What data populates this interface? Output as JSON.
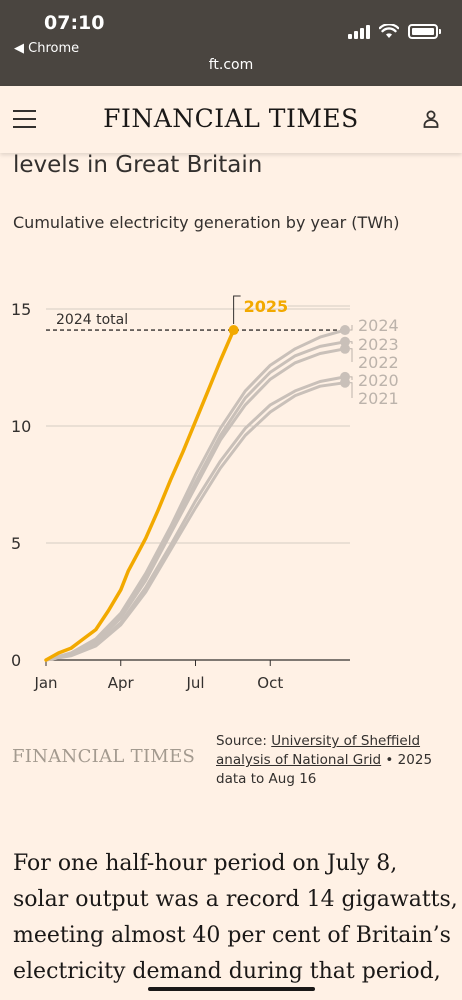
{
  "status_bar": {
    "time": "07:10",
    "back_label": "◀ Chrome",
    "url": "ft.com"
  },
  "header": {
    "masthead": "FINANCIAL TIMES"
  },
  "article": {
    "headline_tail": "levels in Great Britain",
    "chart_subtitle": "Cumulative electricity generation by year (TWh)",
    "paragraph": "For one half-hour period on July 8, solar output was a record 14 gigawatts, meeting almost 40 per cent of Britain’s electricity demand during that period,"
  },
  "chart_footer": {
    "logo": "FINANCIAL TIMES",
    "source_prefix": "Source: ",
    "source_link": "University of Sheffield analysis of National Grid",
    "source_suffix": " • 2025 data to Aug 16"
  },
  "colors": {
    "highlight": "#f2a900",
    "history": "#c9c0b9",
    "axis": "#33302e",
    "background": "#fff1e5"
  },
  "chart_data": {
    "type": "line",
    "ylim": [
      0,
      15
    ],
    "yticks": [
      0,
      5,
      10,
      15
    ],
    "xticks": [
      "Jan",
      "Apr",
      "Jul",
      "Oct"
    ],
    "annotation": "2024 total",
    "annotation_value": 14.1,
    "series": [
      {
        "name": "2025",
        "color": "#f2a900",
        "points": [
          [
            0,
            0
          ],
          [
            0.5,
            0.3
          ],
          [
            1,
            0.5
          ],
          [
            1.5,
            0.9
          ],
          [
            2,
            1.3
          ],
          [
            2.5,
            2.1
          ],
          [
            3,
            3.0
          ],
          [
            3.3,
            3.8
          ],
          [
            3.7,
            4.6
          ],
          [
            4,
            5.2
          ],
          [
            4.5,
            6.4
          ],
          [
            5,
            7.7
          ],
          [
            5.5,
            8.9
          ],
          [
            6,
            10.2
          ],
          [
            6.5,
            11.5
          ],
          [
            7,
            12.8
          ],
          [
            7.53,
            14.1
          ]
        ]
      },
      {
        "name": "2024",
        "color": "#c9c0b9",
        "points": [
          [
            0,
            0
          ],
          [
            1,
            0.3
          ],
          [
            2,
            0.9
          ],
          [
            3,
            2.0
          ],
          [
            4,
            3.7
          ],
          [
            5,
            5.7
          ],
          [
            6,
            7.9
          ],
          [
            7,
            9.9
          ],
          [
            8,
            11.5
          ],
          [
            9,
            12.6
          ],
          [
            10,
            13.3
          ],
          [
            11,
            13.8
          ],
          [
            12,
            14.1
          ]
        ]
      },
      {
        "name": "2023",
        "color": "#c9c0b9",
        "points": [
          [
            0,
            0
          ],
          [
            1,
            0.25
          ],
          [
            2,
            0.8
          ],
          [
            3,
            1.9
          ],
          [
            4,
            3.5
          ],
          [
            5,
            5.5
          ],
          [
            6,
            7.6
          ],
          [
            7,
            9.6
          ],
          [
            8,
            11.2
          ],
          [
            9,
            12.3
          ],
          [
            10,
            13.0
          ],
          [
            11,
            13.4
          ],
          [
            12,
            13.6
          ]
        ]
      },
      {
        "name": "2022",
        "color": "#c9c0b9",
        "points": [
          [
            0,
            0
          ],
          [
            1,
            0.22
          ],
          [
            2,
            0.75
          ],
          [
            3,
            1.8
          ],
          [
            4,
            3.4
          ],
          [
            5,
            5.4
          ],
          [
            6,
            7.4
          ],
          [
            7,
            9.4
          ],
          [
            8,
            10.9
          ],
          [
            9,
            12.0
          ],
          [
            10,
            12.7
          ],
          [
            11,
            13.1
          ],
          [
            12,
            13.3
          ]
        ]
      },
      {
        "name": "2020",
        "color": "#c9c0b9",
        "points": [
          [
            0,
            0
          ],
          [
            1,
            0.2
          ],
          [
            2,
            0.65
          ],
          [
            3,
            1.6
          ],
          [
            4,
            3.1
          ],
          [
            5,
            4.9
          ],
          [
            6,
            6.8
          ],
          [
            7,
            8.5
          ],
          [
            8,
            9.9
          ],
          [
            9,
            10.9
          ],
          [
            10,
            11.5
          ],
          [
            11,
            11.9
          ],
          [
            12,
            12.1
          ]
        ]
      },
      {
        "name": "2021",
        "color": "#c9c0b9",
        "points": [
          [
            0,
            0
          ],
          [
            1,
            0.18
          ],
          [
            2,
            0.6
          ],
          [
            3,
            1.5
          ],
          [
            4,
            2.9
          ],
          [
            5,
            4.7
          ],
          [
            6,
            6.5
          ],
          [
            7,
            8.2
          ],
          [
            8,
            9.6
          ],
          [
            9,
            10.6
          ],
          [
            10,
            11.3
          ],
          [
            11,
            11.7
          ],
          [
            12,
            11.85
          ]
        ]
      }
    ]
  }
}
